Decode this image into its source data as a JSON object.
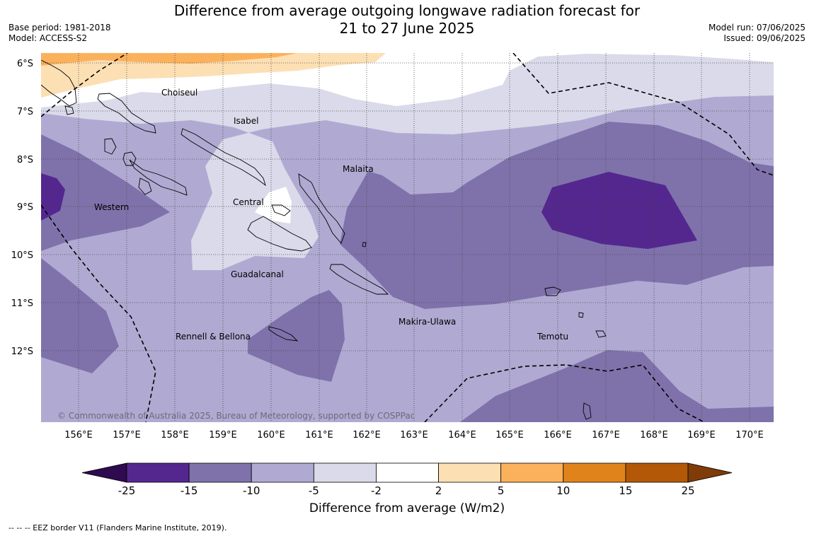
{
  "header": {
    "title_line1": "Difference from average outgoing longwave radiation forecast for",
    "title_line2": "21 to 27 June 2025",
    "base_period": "Base period: 1981-2018",
    "model": "Model: ACCESS-S2",
    "model_run": "Model run: 07/06/2025",
    "issued": "Issued: 09/06/2025"
  },
  "map": {
    "lat_labels": [
      "6°S",
      "7°S",
      "8°S",
      "9°S",
      "10°S",
      "11°S",
      "12°S"
    ],
    "lon_labels": [
      "156°E",
      "157°E",
      "158°E",
      "159°E",
      "160°E",
      "161°E",
      "162°E",
      "163°E",
      "164°E",
      "165°E",
      "166°E",
      "167°E",
      "168°E",
      "169°E",
      "170°E"
    ],
    "provinces": [
      "Choiseul",
      "Isabel",
      "Malaita",
      "Western",
      "Central",
      "Guadalcanal",
      "Makira-Ulawa",
      "Temotu",
      "Rennell & Bellona"
    ],
    "copyright": "© Commonwealth of Australia 2025, Bureau of Meteorology, supported by COSPPac"
  },
  "colorbar": {
    "tick_labels": [
      "-25",
      "-15",
      "-10",
      "-5",
      "-2",
      "2",
      "5",
      "10",
      "15",
      "25"
    ],
    "colors": [
      "#2e0a4f",
      "#54278f",
      "#7f72ab",
      "#b0aad2",
      "#dadaea",
      "#ffffff",
      "#fddfb4",
      "#fbb15c",
      "#e0831b",
      "#b35806",
      "#7f3b08"
    ],
    "label": "Difference from average (W/m2)"
  },
  "footer": {
    "eez_note": "--  --  -- EEZ border V11 (Flanders Marine Institute, 2019)."
  }
}
